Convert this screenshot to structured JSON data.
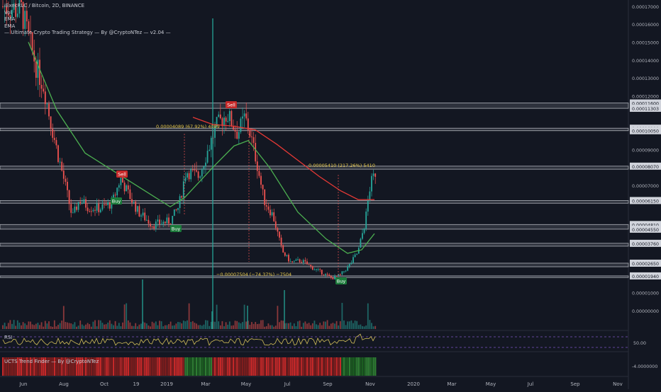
{
  "header": {
    "symbol_line": "iExecRLC / Bitcoin, 2D, BINANCE",
    "indicator_vol": "Vol",
    "indicator_ema1": "EMA",
    "indicator_ema2": "EMA",
    "strategy": "— Ultimate Crypto Trading Strategy — By @CryptoNTez — v2.04 —"
  },
  "rsi": {
    "label": "RSI",
    "level_label": "50.00"
  },
  "trend_finder": {
    "label": "UCTS Trend Finder — By @CryptoNTez",
    "value_label": "-4.0000000"
  },
  "price_axis_labels": [
    "0.00017000",
    "0.00016000",
    "0.00015000",
    "0.00014000",
    "0.00013000",
    "0.00012000",
    "0.00011600",
    "0.00011303",
    "0.00010190",
    "0.00010050",
    "0.00009000",
    "0.00008070",
    "0.00007000",
    "0.00006150",
    "0.00004810",
    "0.00004550",
    "0.00003760",
    "0.00002650",
    "0.00001940",
    "0.00001000",
    "0.00000000"
  ],
  "time_axis_labels": [
    "Jun",
    "Aug",
    "Oct",
    "19",
    "2019",
    "Mar",
    "May",
    "Jul",
    "Sep",
    "Nov",
    "2020",
    "Mar",
    "May",
    "Jul",
    "Sep",
    "Nov"
  ],
  "annotations": {
    "sell1": "Sell",
    "sell2": "Sell",
    "buy1": "Buy",
    "buy2": "Buy",
    "buy3": "Buy",
    "measure_up": "0.00004089 (67.92%) 4089",
    "measure_up2": "0.00005410 (217.26%) 5410",
    "measure_down": "−0.00007504 (−74.37%) −7504"
  },
  "colors": {
    "background": "#131722",
    "up": "#26a69a",
    "down": "#ef5350",
    "ema_fast": "#e53935",
    "ema_slow": "#4caf50",
    "zone": "#787b86",
    "rsi_line": "#d4c05a",
    "measure": "#e6c84a"
  }
}
